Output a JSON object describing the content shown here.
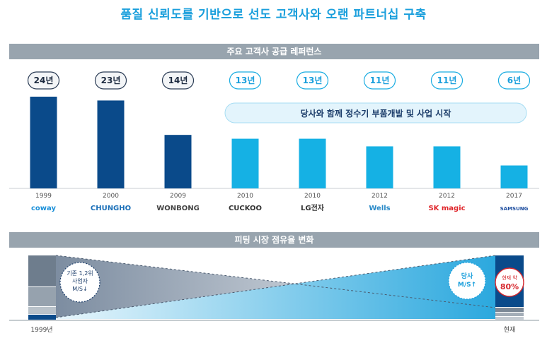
{
  "title": "품질 신뢰도를 기반으로 선도 고객사와 오랜 파트너십 구축",
  "section1_header": "주요 고객사 공급 레퍼런스",
  "section2_header": "피팅 시장 점유율 변화",
  "callout": "당사와 함께 정수기 부품개발 및 사업 시작",
  "chart_data": {
    "type": "bar",
    "categories": [
      "coway",
      "CHUNGHO",
      "WONBONG",
      "CUCKOO",
      "LG전자",
      "Wells",
      "SK magic",
      "SAMSUNG"
    ],
    "years": [
      "1999",
      "2000",
      "2009",
      "2010",
      "2010",
      "2012",
      "2012",
      "2017"
    ],
    "values": [
      24,
      23,
      14,
      13,
      13,
      11,
      11,
      6
    ],
    "labels": [
      "24년",
      "23년",
      "14년",
      "13년",
      "13년",
      "11년",
      "11년",
      "6년"
    ],
    "colors": [
      "#0a4a8a",
      "#0a4a8a",
      "#0a4a8a",
      "#15b1e4",
      "#15b1e4",
      "#15b1e4",
      "#15b1e4",
      "#15b1e4"
    ]
  },
  "logos": [
    {
      "text": "coway",
      "color": "#1a8fd8"
    },
    {
      "text": "CHUNGHO",
      "color": "#1a6fb8"
    },
    {
      "text": "WONBONG",
      "color": "#444444"
    },
    {
      "text": "CUCKOO",
      "color": "#333333"
    },
    {
      "text": "LG전자",
      "color": "#333333"
    },
    {
      "text": "Wells",
      "color": "#2a8ac8"
    },
    {
      "text": "SK magic",
      "color": "#e0262b"
    },
    {
      "text": "SAMSUNG",
      "color": "#1f4fa0"
    }
  ],
  "share": {
    "left_label": "1999년",
    "right_label": "현재",
    "left_circle": "기존 1,2위 사업자 M/S↓",
    "right_circle": "당사 M/S↑",
    "result_badge_1": "현재 약",
    "result_badge_2": "80%"
  }
}
